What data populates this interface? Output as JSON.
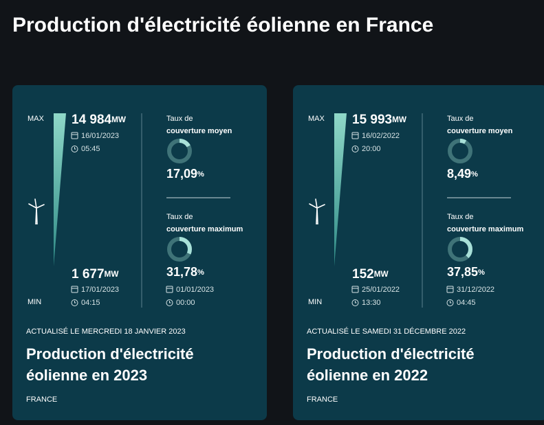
{
  "header": {
    "title": "Production d'électricité éolienne en France"
  },
  "cards": [
    {
      "max": {
        "label": "MAX",
        "value": "14 984",
        "unit": "MW",
        "date": "16/01/2023",
        "time": "05:45"
      },
      "min": {
        "label": "MIN",
        "value": "1 677",
        "unit": "MW",
        "date": "17/01/2023",
        "time": "04:15"
      },
      "coverage_avg": {
        "label_line1": "Taux de",
        "label_line2": "couverture moyen",
        "value": 17.09,
        "value_label": "17,09",
        "unit": "%"
      },
      "coverage_max": {
        "label_line1": "Taux de",
        "label_line2": "couverture maximum",
        "value": 31.78,
        "value_label": "31,78",
        "unit": "%",
        "date": "01/01/2023",
        "time": "00:00"
      },
      "updated": "ACTUALISÉ LE MERCREDI 18 JANVIER 2023",
      "title_line1": "Production d'électricité",
      "title_line2": "éolienne en 2023",
      "region": "FRANCE"
    },
    {
      "max": {
        "label": "MAX",
        "value": "15 993",
        "unit": "MW",
        "date": "16/02/2022",
        "time": "20:00"
      },
      "min": {
        "label": "MIN",
        "value": "152",
        "unit": "MW",
        "date": "25/01/2022",
        "time": "13:30"
      },
      "coverage_avg": {
        "label_line1": "Taux de",
        "label_line2": "couverture moyen",
        "value": 8.49,
        "value_label": "8,49",
        "unit": "%"
      },
      "coverage_max": {
        "label_line1": "Taux de",
        "label_line2": "couverture maximum",
        "value": 37.85,
        "value_label": "37,85",
        "unit": "%",
        "date": "31/12/2022",
        "time": "04:45"
      },
      "updated": "ACTUALISÉ LE SAMEDI 31 DÉCEMBRE 2022",
      "title_line1": "Production d'électricité",
      "title_line2": "éolienne en 2022",
      "region": "FRANCE"
    }
  ]
}
